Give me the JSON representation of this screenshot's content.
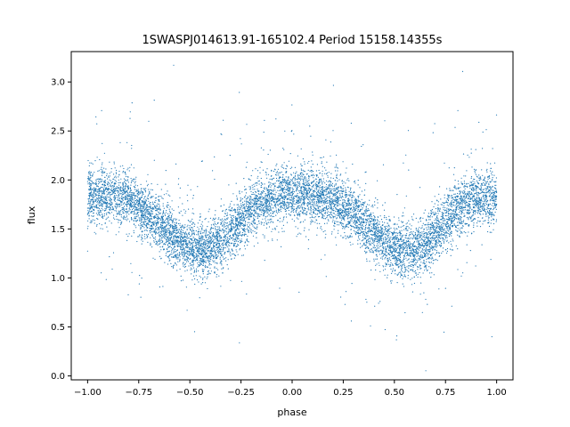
{
  "chart_data": {
    "type": "scatter",
    "title": "1SWASPJ014613.91-165102.4 Period 15158.14355s",
    "xlabel": "phase",
    "ylabel": "flux",
    "xlim": [
      -1.08,
      1.08
    ],
    "ylim": [
      -0.04,
      3.31
    ],
    "x_ticks": [
      -1.0,
      -0.75,
      -0.5,
      -0.25,
      0.0,
      0.25,
      0.5,
      0.75,
      1.0
    ],
    "x_tick_labels": [
      "−1.00",
      "−0.75",
      "−0.50",
      "−0.25",
      "0.00",
      "0.25",
      "0.50",
      "0.75",
      "1.00"
    ],
    "y_ticks": [
      0.0,
      0.5,
      1.0,
      1.5,
      2.0,
      2.5,
      3.0
    ],
    "y_tick_labels": [
      "0.0",
      "0.5",
      "1.0",
      "1.5",
      "2.0",
      "2.5",
      "3.0"
    ],
    "grid": false,
    "marker_color": "#1f77b4",
    "series": [
      {
        "x": [
          -1.0,
          -0.95,
          -0.9,
          -0.85,
          -0.8,
          -0.75,
          -0.7,
          -0.65,
          -0.6,
          -0.55,
          -0.5,
          -0.45,
          -0.4,
          -0.35,
          -0.3,
          -0.25,
          -0.2,
          -0.15,
          -0.1,
          -0.05,
          0.0,
          0.05,
          0.1,
          0.15,
          0.2,
          0.25,
          0.3,
          0.35,
          0.4,
          0.45,
          0.5,
          0.55,
          0.6,
          0.65,
          0.7,
          0.75,
          0.8,
          0.85,
          0.9,
          0.95,
          1.0
        ],
        "y": [
          1.82,
          1.84,
          1.85,
          1.84,
          1.8,
          1.73,
          1.65,
          1.56,
          1.46,
          1.37,
          1.31,
          1.28,
          1.3,
          1.38,
          1.48,
          1.6,
          1.7,
          1.77,
          1.82,
          1.85,
          1.86,
          1.86,
          1.85,
          1.83,
          1.79,
          1.72,
          1.64,
          1.55,
          1.45,
          1.37,
          1.31,
          1.28,
          1.29,
          1.36,
          1.46,
          1.58,
          1.68,
          1.76,
          1.81,
          1.83,
          1.82
        ]
      }
    ]
  }
}
